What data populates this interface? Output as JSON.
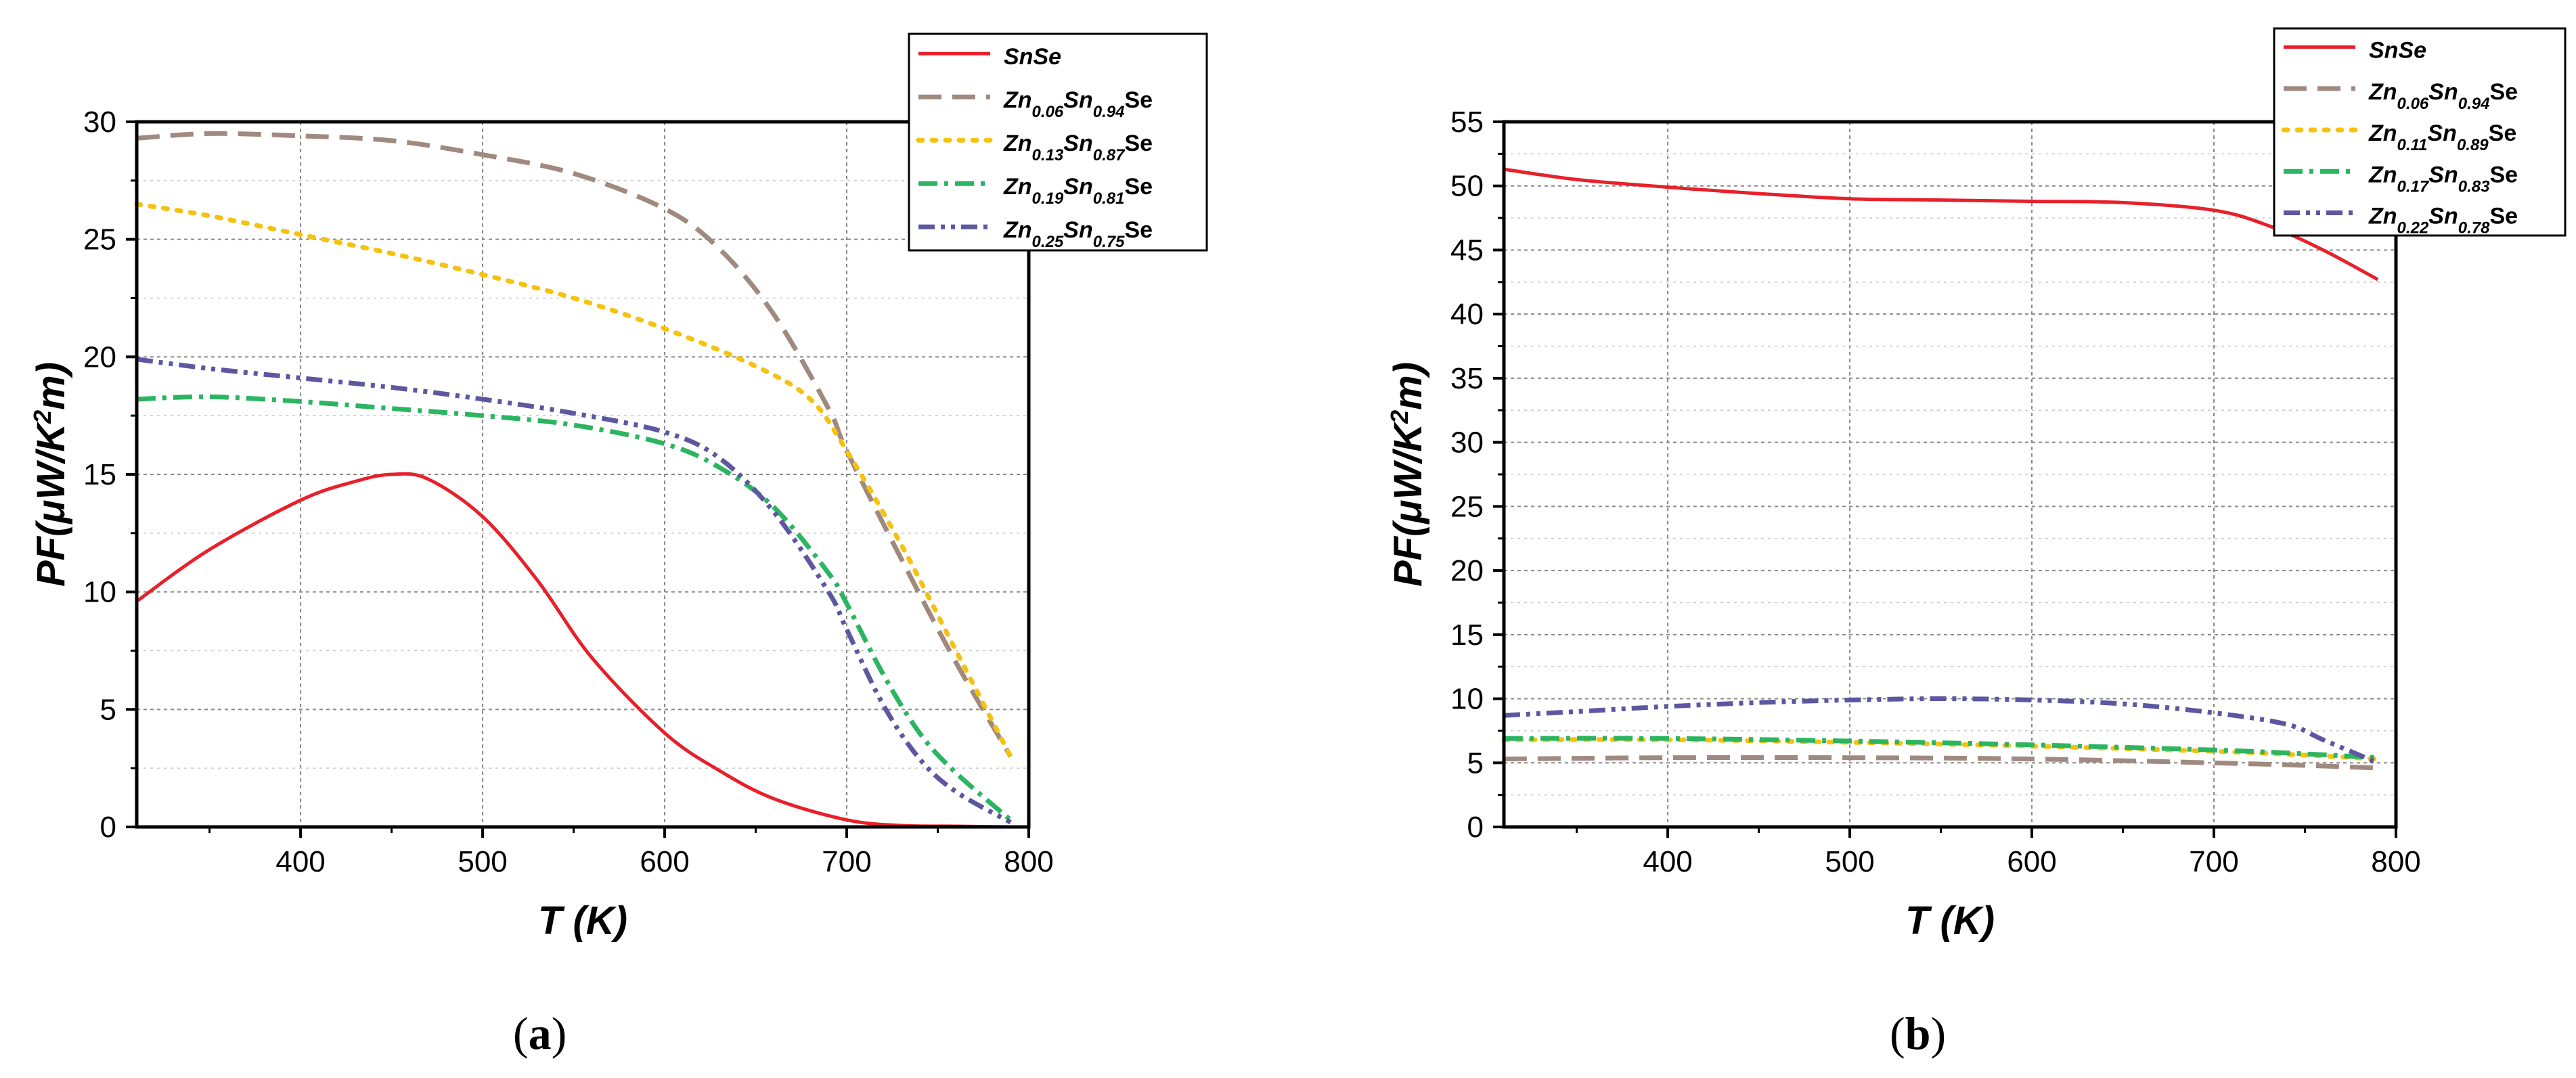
{
  "chart_data": [
    {
      "panel": "a",
      "type": "line",
      "ylabel": "PF(μW/K²m)",
      "xlabel": "T (K)",
      "xlim": [
        310,
        800
      ],
      "ylim": [
        0,
        30
      ],
      "xticks": [
        400,
        500,
        600,
        700,
        800
      ],
      "yticks": [
        0,
        5,
        10,
        15,
        20,
        25,
        30
      ],
      "grid": true,
      "legend_position": "top-right",
      "series": [
        {
          "name": "SnSe",
          "color": "#e8202a",
          "style": "solid",
          "x": [
            310,
            350,
            400,
            430,
            450,
            470,
            500,
            530,
            560,
            600,
            630,
            660,
            700,
            730,
            760,
            790
          ],
          "y": [
            9.6,
            11.8,
            13.9,
            14.7,
            15.0,
            14.8,
            13.2,
            10.5,
            7.2,
            4.0,
            2.4,
            1.2,
            0.3,
            0.06,
            0.03,
            0.0
          ]
        },
        {
          "name": "Zn0.06Sn0.94Se",
          "color": "#a08a80",
          "style": "dash",
          "x": [
            310,
            350,
            400,
            450,
            500,
            550,
            600,
            630,
            660,
            690,
            700,
            730,
            760,
            790
          ],
          "y": [
            29.3,
            29.5,
            29.4,
            29.2,
            28.6,
            27.8,
            26.3,
            24.6,
            21.8,
            17.8,
            16.0,
            11.4,
            7.0,
            3.0
          ]
        },
        {
          "name": "Zn0.13Sn0.87Se",
          "color": "#f5c20f",
          "style": "dot",
          "x": [
            310,
            350,
            400,
            450,
            500,
            550,
            600,
            650,
            680,
            700,
            730,
            760,
            790
          ],
          "y": [
            26.5,
            26.0,
            25.2,
            24.4,
            23.5,
            22.5,
            21.2,
            19.6,
            18.2,
            16.0,
            12.0,
            7.5,
            3.0
          ]
        },
        {
          "name": "Zn0.19Sn0.81Se",
          "color": "#2bb560",
          "style": "dashdot",
          "x": [
            310,
            350,
            400,
            450,
            500,
            550,
            600,
            630,
            660,
            690,
            700,
            720,
            740,
            760,
            790
          ],
          "y": [
            18.2,
            18.3,
            18.1,
            17.8,
            17.5,
            17.1,
            16.3,
            15.3,
            13.6,
            10.8,
            9.5,
            6.5,
            4.0,
            2.3,
            0.3
          ]
        },
        {
          "name": "Zn0.25Sn0.75Se",
          "color": "#5c57a0",
          "style": "dashdotdot",
          "x": [
            310,
            350,
            400,
            450,
            500,
            550,
            600,
            630,
            660,
            690,
            700,
            720,
            740,
            760,
            790
          ],
          "y": [
            19.9,
            19.5,
            19.1,
            18.7,
            18.2,
            17.6,
            16.8,
            15.7,
            13.4,
            10.0,
            8.4,
            5.2,
            2.9,
            1.5,
            0.2
          ]
        }
      ]
    },
    {
      "panel": "b",
      "type": "line",
      "ylabel": "PF(μW/K²m)",
      "xlabel": "T (K)",
      "xlim": [
        310,
        800
      ],
      "ylim": [
        0,
        55
      ],
      "xticks": [
        400,
        500,
        600,
        700,
        800
      ],
      "yticks": [
        0,
        5,
        10,
        15,
        20,
        25,
        30,
        35,
        40,
        45,
        50,
        55
      ],
      "grid": true,
      "legend_position": "top-right",
      "series": [
        {
          "name": "SnSe",
          "color": "#e8202a",
          "style": "solid",
          "x": [
            310,
            350,
            400,
            450,
            500,
            550,
            600,
            650,
            700,
            730,
            760,
            790
          ],
          "y": [
            51.3,
            50.5,
            49.9,
            49.4,
            49.0,
            48.9,
            48.8,
            48.7,
            48.1,
            46.9,
            45.0,
            42.7
          ]
        },
        {
          "name": "Zn0.06Sn0.94Se",
          "color": "#a08a80",
          "style": "dash",
          "x": [
            310,
            400,
            500,
            600,
            700,
            750,
            790
          ],
          "y": [
            5.3,
            5.4,
            5.4,
            5.3,
            5.0,
            4.8,
            4.6
          ]
        },
        {
          "name": "Zn0.11Sn0.89Se",
          "color": "#f5c20f",
          "style": "dot",
          "x": [
            310,
            400,
            500,
            600,
            700,
            750,
            790
          ],
          "y": [
            6.8,
            6.8,
            6.6,
            6.3,
            5.9,
            5.6,
            5.3
          ]
        },
        {
          "name": "Zn0.17Sn0.83Se",
          "color": "#2bb560",
          "style": "dashdot",
          "x": [
            310,
            400,
            500,
            600,
            700,
            750,
            790
          ],
          "y": [
            6.9,
            6.9,
            6.7,
            6.4,
            6.0,
            5.7,
            5.4
          ]
        },
        {
          "name": "Zn0.22Sn0.78Se",
          "color": "#5c57a0",
          "style": "dashdotdot",
          "x": [
            310,
            350,
            400,
            450,
            500,
            550,
            600,
            650,
            700,
            740,
            760,
            790
          ],
          "y": [
            8.7,
            9.0,
            9.4,
            9.7,
            9.9,
            10.0,
            9.9,
            9.6,
            8.9,
            8.0,
            6.8,
            5.0
          ]
        }
      ]
    }
  ],
  "legends": [
    [
      {
        "main": "SnSe"
      },
      {
        "main": "Zn",
        "sub1": "0.06",
        "mid": "Sn",
        "sub2": "0.94",
        "tail": "Se"
      },
      {
        "main": "Zn",
        "sub1": "0.13",
        "mid": "Sn",
        "sub2": "0.87",
        "tail": "Se"
      },
      {
        "main": "Zn",
        "sub1": "0.19",
        "mid": "Sn",
        "sub2": "0.81",
        "tail": "Se"
      },
      {
        "main": "Zn",
        "sub1": "0.25",
        "mid": "Sn",
        "sub2": "0.75",
        "tail": "Se"
      }
    ],
    [
      {
        "main": "SnSe"
      },
      {
        "main": "Zn",
        "sub1": "0.06",
        "mid": "Sn",
        "sub2": "0.94",
        "tail": "Se"
      },
      {
        "main": "Zn",
        "sub1": "0.11",
        "mid": "Sn",
        "sub2": "0.89",
        "tail": "Se"
      },
      {
        "main": "Zn",
        "sub1": "0.17",
        "mid": "Sn",
        "sub2": "0.83",
        "tail": "Se"
      },
      {
        "main": "Zn",
        "sub1": "0.22",
        "mid": "Sn",
        "sub2": "0.78",
        "tail": "Se"
      }
    ]
  ],
  "axis_text": {
    "ylabel_pf": "PF",
    "ylabel_open": "(",
    "ylabel_mu": "μW",
    "ylabel_slash": "/",
    "ylabel_k": "K",
    "ylabel_exp": "2",
    "ylabel_m": "m)",
    "xlabel": "T (K)"
  },
  "panel_labels": {
    "a": "a",
    "b": "b"
  }
}
